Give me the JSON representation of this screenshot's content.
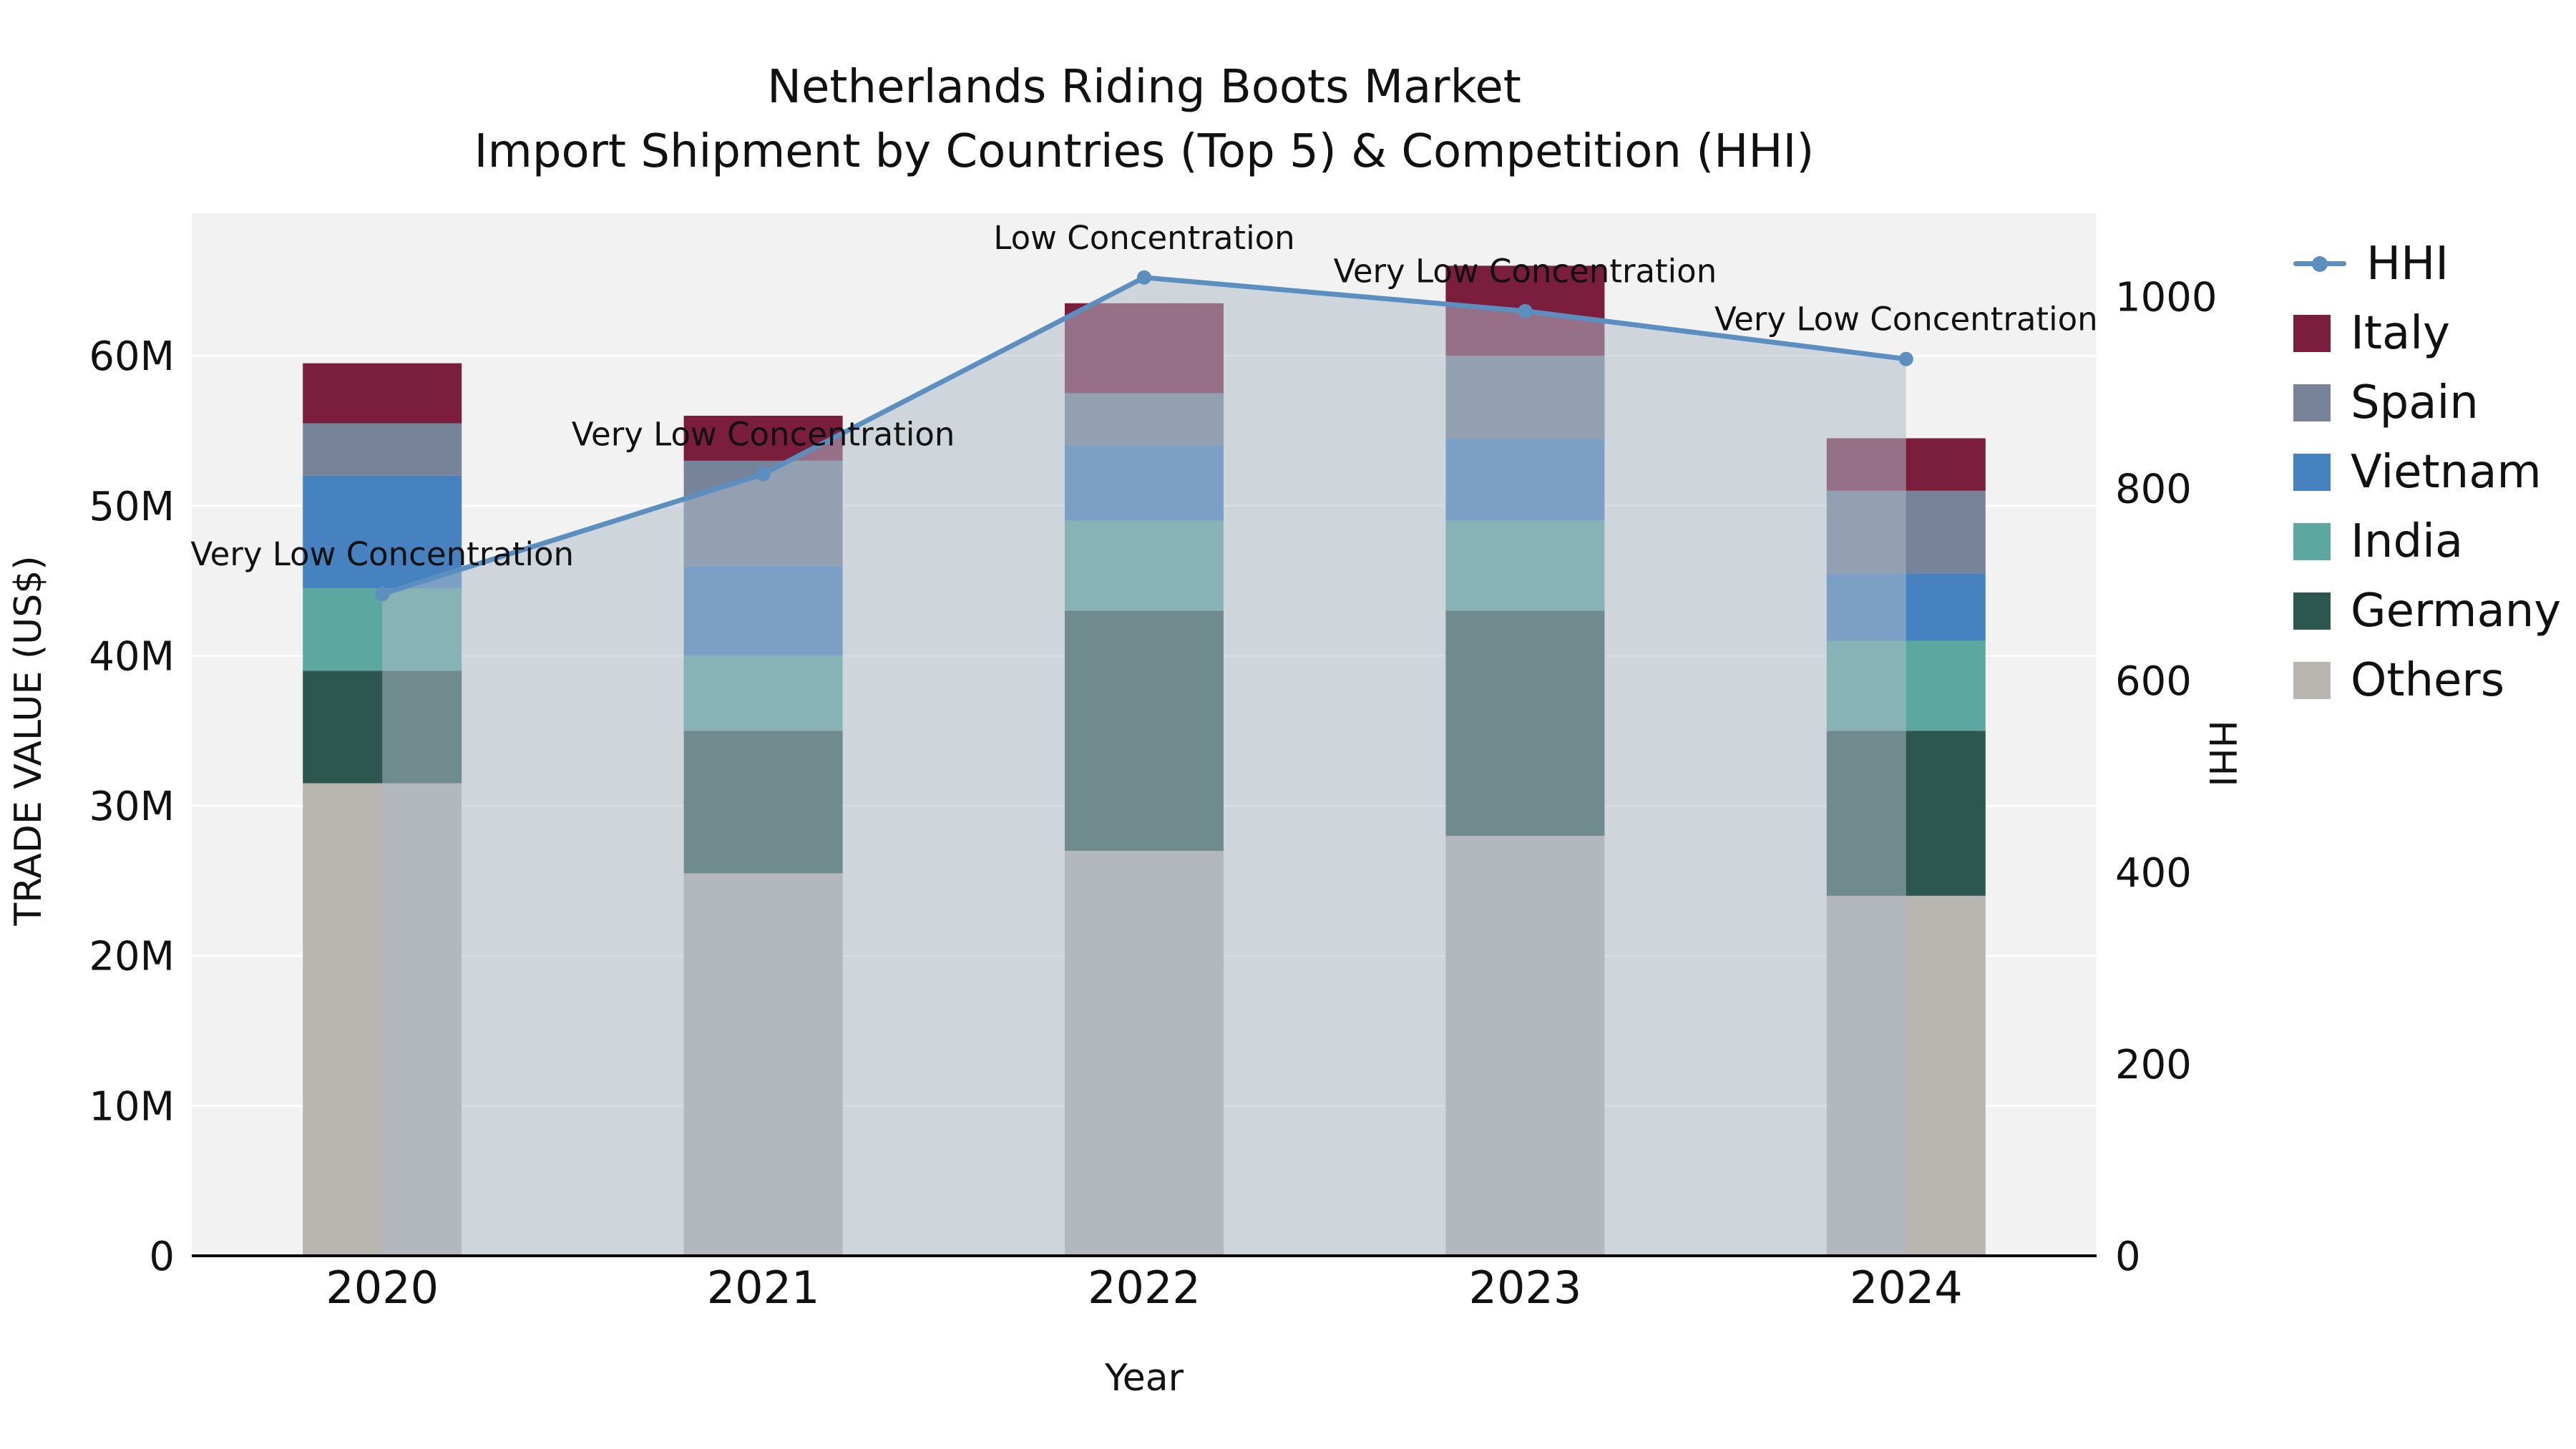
{
  "title": {
    "line1": "Netherlands Riding Boots Market",
    "line2": "Import Shipment by Countries (Top 5) & Competition (HHI)"
  },
  "axes": {
    "x_title": "Year",
    "y_left_title": "TRADE VALUE (US$)",
    "y_right_title": "HHI"
  },
  "chart_data": {
    "type": "bar",
    "subtype": "stacked-bars-with-hhi-line-and-area",
    "title": "Netherlands Riding Boots Market — Import Shipment by Countries (Top 5) & Competition (HHI)",
    "categories": [
      "2020",
      "2021",
      "2022",
      "2023",
      "2024"
    ],
    "value_unit": "M US$",
    "grid": "white-horizontal-on-gray",
    "legend_position": "right",
    "left_axis": {
      "label": "TRADE VALUE (US$)",
      "tick_labels": [
        "0",
        "10M",
        "20M",
        "30M",
        "40M",
        "50M",
        "60M"
      ],
      "tick_values": [
        0,
        10,
        20,
        30,
        40,
        50,
        60
      ],
      "display_max": 69.5
    },
    "right_axis": {
      "label": "HHI",
      "tick_labels": [
        "0",
        "200",
        "400",
        "600",
        "800",
        "1000"
      ],
      "tick_values": [
        0,
        200,
        400,
        600,
        800,
        1000
      ],
      "display_max": 1087
    },
    "bar_series": [
      {
        "name": "Others",
        "color": "#b9b5b1",
        "values": [
          31.5,
          25.5,
          27.0,
          28.0,
          24.0
        ]
      },
      {
        "name": "Germany",
        "color": "#2d564f",
        "values": [
          7.5,
          9.5,
          16.0,
          15.0,
          11.0
        ]
      },
      {
        "name": "India",
        "color": "#5ca8a1",
        "values": [
          5.5,
          5.0,
          6.0,
          6.0,
          6.0
        ]
      },
      {
        "name": "Vietnam",
        "color": "#4682c0",
        "values": [
          7.5,
          6.0,
          5.0,
          5.5,
          4.5
        ]
      },
      {
        "name": "Spain",
        "color": "#768399",
        "values": [
          3.5,
          7.0,
          3.5,
          5.5,
          5.5
        ]
      },
      {
        "name": "Italy",
        "color": "#7b1e3d",
        "values": [
          4.0,
          3.0,
          6.0,
          6.0,
          3.5
        ]
      }
    ],
    "bar_totals": [
      59.5,
      56.0,
      63.5,
      66.0,
      54.5
    ],
    "line_series": {
      "name": "HHI",
      "color": "#5b8fc0",
      "values": [
        690,
        815,
        1020,
        985,
        935
      ],
      "area_fill": "#aebbca",
      "area_opacity": 0.52
    },
    "annotations": [
      "Very Low Concentration",
      "Very Low Concentration",
      "Low Concentration",
      "Very Low Concentration",
      "Very Low Concentration"
    ],
    "legend": [
      {
        "label": "HHI",
        "type": "line",
        "color": "#5b8fc0"
      },
      {
        "label": "Italy",
        "type": "swatch",
        "color": "#7b1e3d"
      },
      {
        "label": "Spain",
        "type": "swatch",
        "color": "#768399"
      },
      {
        "label": "Vietnam",
        "type": "swatch",
        "color": "#4682c0"
      },
      {
        "label": "India",
        "type": "swatch",
        "color": "#5ca8a1"
      },
      {
        "label": "Germany",
        "type": "swatch",
        "color": "#2d564f"
      },
      {
        "label": "Others",
        "type": "swatch",
        "color": "#b9b5b1"
      }
    ]
  }
}
